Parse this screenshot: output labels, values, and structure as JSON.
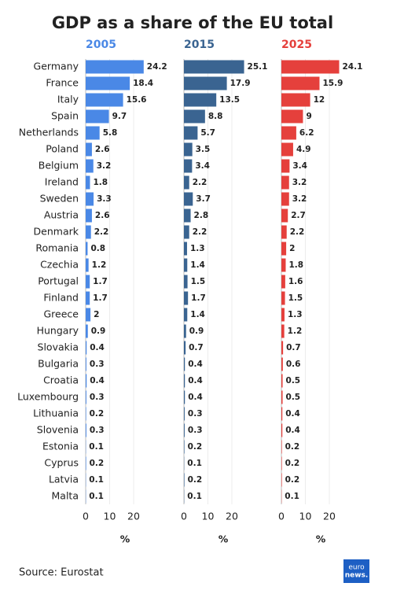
{
  "title": "GDP as a share of the EU total",
  "source": "Source: Eurostat",
  "logo": [
    "euro",
    "news."
  ],
  "categories": [
    "Germany",
    "France",
    "Italy",
    "Spain",
    "Netherlands",
    "Poland",
    "Belgium",
    "Ireland",
    "Sweden",
    "Austria",
    "Denmark",
    "Romania",
    "Czechia",
    "Portugal",
    "Finland",
    "Greece",
    "Hungary",
    "Slovakia",
    "Bulgaria",
    "Croatia",
    "Luxembourg",
    "Lithuania",
    "Slovenia",
    "Estonia",
    "Cyprus",
    "Latvia",
    "Malta"
  ],
  "chart_data": [
    {
      "type": "bar",
      "title": "2005",
      "color": "#4a88e6",
      "xlabel": "%",
      "xlim": [
        0,
        30
      ],
      "xticks": [
        0,
        10,
        20
      ],
      "values": [
        24.2,
        18.4,
        15.6,
        9.7,
        5.8,
        2.6,
        3.2,
        1.8,
        3.3,
        2.6,
        2.2,
        0.8,
        1.2,
        1.7,
        1.7,
        2,
        0.9,
        0.4,
        0.3,
        0.4,
        0.3,
        0.2,
        0.3,
        0.1,
        0.2,
        0.1,
        0.1
      ]
    },
    {
      "type": "bar",
      "title": "2015",
      "color": "#3a6491",
      "xlabel": "%",
      "xlim": [
        0,
        30
      ],
      "xticks": [
        0,
        10,
        20
      ],
      "values": [
        25.1,
        17.9,
        13.5,
        8.8,
        5.7,
        3.5,
        3.4,
        2.2,
        3.7,
        2.8,
        2.2,
        1.3,
        1.4,
        1.5,
        1.7,
        1.4,
        0.9,
        0.7,
        0.4,
        0.4,
        0.4,
        0.3,
        0.3,
        0.2,
        0.1,
        0.2,
        0.1
      ]
    },
    {
      "type": "bar",
      "title": "2025",
      "color": "#e5403c",
      "xlabel": "%",
      "xlim": [
        0,
        30
      ],
      "xticks": [
        0,
        10,
        20
      ],
      "values": [
        24.1,
        15.9,
        12,
        9,
        6.2,
        4.9,
        3.4,
        3.2,
        3.2,
        2.7,
        2.2,
        2,
        1.8,
        1.6,
        1.5,
        1.3,
        1.2,
        0.7,
        0.6,
        0.5,
        0.5,
        0.4,
        0.4,
        0.2,
        0.2,
        0.2,
        0.1
      ]
    }
  ]
}
